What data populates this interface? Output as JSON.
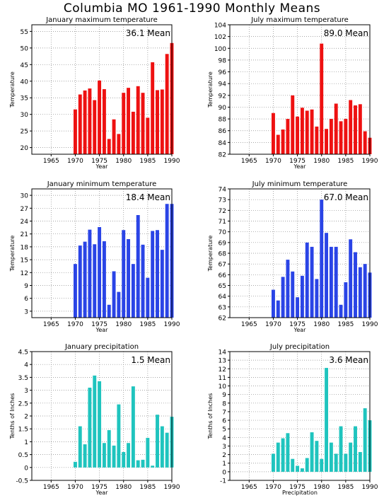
{
  "page_title": "Columbia MO   1961-1990 Monthly Means",
  "colors": {
    "red": "#ee1111",
    "blue": "#2a44e6",
    "teal": "#1fc4be"
  },
  "chart_data": [
    {
      "type": "bar",
      "title": "January maximum temperature",
      "mean_label": "36.1 Mean",
      "ylabel": "Temperature",
      "xlabel": "Year",
      "color": "red",
      "xlim": [
        1961,
        1990
      ],
      "ylim": [
        18,
        57
      ],
      "yticks": [
        20,
        25,
        30,
        35,
        40,
        45,
        50,
        55
      ],
      "xticks": [
        1965,
        1970,
        1975,
        1980,
        1985,
        1990
      ],
      "x": [
        1970,
        1971,
        1972,
        1973,
        1974,
        1975,
        1976,
        1977,
        1978,
        1979,
        1980,
        1981,
        1982,
        1983,
        1984,
        1985,
        1986,
        1987,
        1988,
        1989,
        1990
      ],
      "values": [
        31.5,
        36,
        37.2,
        37.8,
        34.3,
        40.2,
        37.6,
        22.6,
        28.5,
        24.1,
        36.5,
        38,
        30.8,
        38.5,
        36.5,
        29,
        45.7,
        37.3,
        37.5,
        48.2,
        51.5
      ]
    },
    {
      "type": "bar",
      "title": "July maximum temperature",
      "mean_label": "89.0 Mean",
      "ylabel": "Temperature",
      "xlabel": "Year",
      "color": "red",
      "xlim": [
        1961,
        1990
      ],
      "ylim": [
        82,
        104
      ],
      "yticks": [
        82,
        84,
        86,
        88,
        90,
        92,
        94,
        96,
        98,
        100,
        102,
        104
      ],
      "xticks": [
        1965,
        1970,
        1975,
        1980,
        1985,
        1990
      ],
      "x": [
        1970,
        1971,
        1972,
        1973,
        1974,
        1975,
        1976,
        1977,
        1978,
        1979,
        1980,
        1981,
        1982,
        1983,
        1984,
        1985,
        1986,
        1987,
        1988,
        1989,
        1990
      ],
      "values": [
        89,
        85.3,
        86.2,
        88,
        92,
        88.4,
        89.9,
        89.4,
        89.6,
        86.7,
        100.8,
        86.3,
        88,
        90.6,
        87.6,
        88,
        91.2,
        90.3,
        90.5,
        85.9,
        84.8
      ]
    },
    {
      "type": "bar",
      "title": "January minimum temperature",
      "mean_label": "18.4 Mean",
      "ylabel": "Temperature",
      "xlabel": "Year",
      "color": "blue",
      "xlim": [
        1961,
        1990
      ],
      "ylim": [
        1.5,
        31.5
      ],
      "yticks": [
        3,
        6,
        9,
        12,
        15,
        18,
        21,
        24,
        27,
        30
      ],
      "xticks": [
        1965,
        1970,
        1975,
        1980,
        1985,
        1990
      ],
      "x": [
        1970,
        1971,
        1972,
        1973,
        1974,
        1975,
        1976,
        1977,
        1978,
        1979,
        1980,
        1981,
        1982,
        1983,
        1984,
        1985,
        1986,
        1987,
        1988,
        1989,
        1990
      ],
      "values": [
        14,
        18.3,
        19.2,
        22,
        18.6,
        22.6,
        19.3,
        4.5,
        12.3,
        7.5,
        21.9,
        19.8,
        14,
        25.4,
        18.5,
        10.8,
        21.7,
        21.9,
        17.3,
        28,
        28
      ]
    },
    {
      "type": "bar",
      "title": "July minimum temperature",
      "mean_label": "67.0 Mean",
      "ylabel": "Temperature",
      "xlabel": "Year",
      "color": "blue",
      "xlim": [
        1961,
        1990
      ],
      "ylim": [
        62,
        74
      ],
      "yticks": [
        62,
        63,
        64,
        65,
        66,
        67,
        68,
        69,
        70,
        71,
        72,
        73,
        74
      ],
      "xticks": [
        1965,
        1970,
        1975,
        1980,
        1985,
        1990
      ],
      "x": [
        1970,
        1971,
        1972,
        1973,
        1974,
        1975,
        1976,
        1977,
        1978,
        1979,
        1980,
        1981,
        1982,
        1983,
        1984,
        1985,
        1986,
        1987,
        1988,
        1989,
        1990
      ],
      "values": [
        64.6,
        63.6,
        65.8,
        67.4,
        66.3,
        63.9,
        65.9,
        69,
        68.6,
        65.6,
        73,
        69.9,
        68.6,
        68.6,
        63.2,
        65.3,
        69.3,
        68.1,
        66.7,
        67,
        66.2
      ]
    },
    {
      "type": "bar",
      "title": "January precipitation",
      "mean_label": "1.5 Mean",
      "ylabel": "Tenths of Inches",
      "xlabel": "Year",
      "color": "teal",
      "xlim": [
        1961,
        1990
      ],
      "ylim": [
        -0.5,
        4.5
      ],
      "yticks": [
        -0.5,
        0,
        0.5,
        1,
        1.5,
        2,
        2.5,
        3,
        3.5,
        4,
        4.5
      ],
      "xticks": [
        1965,
        1970,
        1975,
        1980,
        1985,
        1990
      ],
      "x": [
        1970,
        1971,
        1972,
        1973,
        1974,
        1975,
        1976,
        1977,
        1978,
        1979,
        1980,
        1981,
        1982,
        1983,
        1984,
        1985,
        1986,
        1987,
        1988,
        1989,
        1990
      ],
      "values": [
        0.22,
        1.6,
        0.9,
        3.1,
        3.57,
        3.35,
        0.95,
        1.45,
        0.85,
        2.45,
        0.6,
        0.95,
        3.15,
        0.28,
        0.3,
        1.15,
        0.07,
        2.05,
        1.6,
        1.35,
        1.97
      ]
    },
    {
      "type": "bar",
      "title": "July precipitation",
      "mean_label": "3.6 Mean",
      "ylabel": "Tenths of Inches",
      "xlabel": "Precipitation",
      "color": "teal",
      "xlim": [
        1961,
        1990
      ],
      "ylim": [
        -1,
        14
      ],
      "yticks": [
        -1,
        0,
        1,
        2,
        3,
        4,
        5,
        6,
        7,
        8,
        9,
        10,
        11,
        12,
        13,
        14
      ],
      "xticks": [
        1965,
        1970,
        1975,
        1980,
        1985,
        1990
      ],
      "x": [
        1970,
        1971,
        1972,
        1973,
        1974,
        1975,
        1976,
        1977,
        1978,
        1979,
        1980,
        1981,
        1982,
        1983,
        1984,
        1985,
        1986,
        1987,
        1988,
        1989,
        1990
      ],
      "values": [
        2.1,
        3.4,
        3.9,
        4.5,
        1.5,
        0.7,
        0.4,
        1.6,
        4.6,
        3.6,
        1.5,
        12.1,
        3.4,
        2.1,
        5.3,
        2.1,
        3.4,
        5.3,
        2.3,
        7.4,
        6
      ]
    }
  ]
}
